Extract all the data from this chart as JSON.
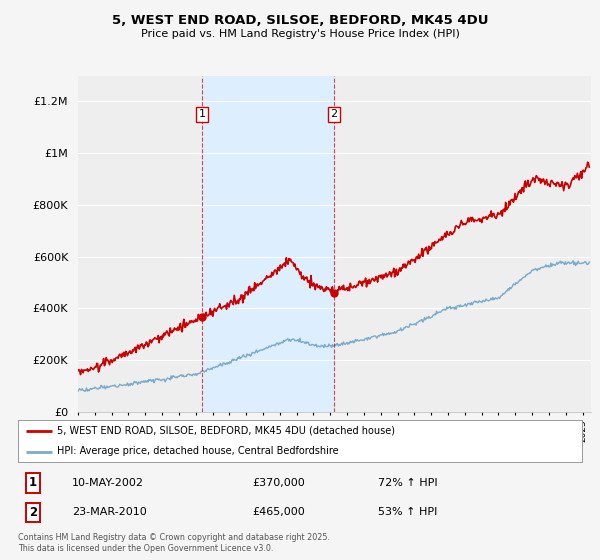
{
  "title": "5, WEST END ROAD, SILSOE, BEDFORD, MK45 4DU",
  "subtitle": "Price paid vs. HM Land Registry's House Price Index (HPI)",
  "background_color": "#f5f5f5",
  "plot_bg_color": "#f0f0f0",
  "shade_color": "#ddeeff",
  "sale1_date": "10-MAY-2002",
  "sale1_price": 370000,
  "sale1_hpi": "72% ↑ HPI",
  "sale1_label": "1",
  "sale1_year": 2002.37,
  "sale2_date": "23-MAR-2010",
  "sale2_price": 465000,
  "sale2_hpi": "53% ↑ HPI",
  "sale2_label": "2",
  "sale2_year": 2010.22,
  "legend_line1": "5, WEST END ROAD, SILSOE, BEDFORD, MK45 4DU (detached house)",
  "legend_line2": "HPI: Average price, detached house, Central Bedfordshire",
  "footnote": "Contains HM Land Registry data © Crown copyright and database right 2025.\nThis data is licensed under the Open Government Licence v3.0.",
  "red_color": "#cc0000",
  "blue_color": "#7aaacc",
  "ylim_max": 1300000,
  "xlim_min": 1995,
  "xlim_max": 2025.5,
  "sale1_red_val": 370000,
  "sale2_red_val": 465000,
  "sale1_blue_val": 145000,
  "sale2_blue_val": 270000
}
